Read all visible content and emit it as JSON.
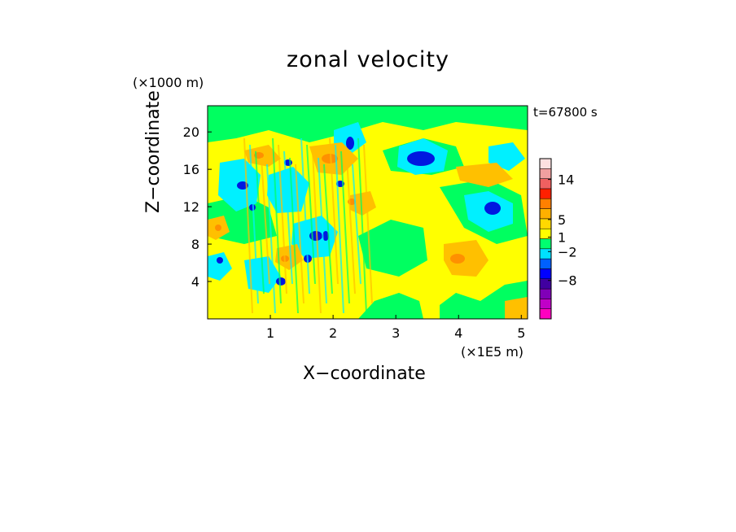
{
  "chart_data": {
    "type": "heatmap",
    "title": "zonal velocity",
    "xlabel": "X−coordinate",
    "ylabel": "Z−coordinate",
    "x_multiplier": "(×1E5 m)",
    "y_multiplier": "(×1000 m)",
    "time_label": "t=67800 s",
    "xlim": [
      0,
      5.1
    ],
    "ylim": [
      0,
      22.8
    ],
    "x_ticks": [
      1,
      2,
      3,
      4,
      5
    ],
    "y_ticks": [
      4,
      8,
      12,
      16,
      20
    ],
    "colorbar": {
      "tick_labels": [
        {
          "label": "14",
          "value": 14
        },
        {
          "label": "5",
          "value": 5
        },
        {
          "label": "1",
          "value": 1
        },
        {
          "label": "−2",
          "value": -2
        },
        {
          "label": "−8",
          "value": -8
        }
      ],
      "bands": [
        {
          "color": "#ff00c0"
        },
        {
          "color": "#c000c8"
        },
        {
          "color": "#8000b8"
        },
        {
          "color": "#4000a0"
        },
        {
          "color": "#0000ff"
        },
        {
          "color": "#0060ff"
        },
        {
          "color": "#00e0ff"
        },
        {
          "color": "#00ff70"
        },
        {
          "color": "#ffff00"
        },
        {
          "color": "#ffd800"
        },
        {
          "color": "#ffb000"
        },
        {
          "color": "#ff8000"
        },
        {
          "color": "#ff2000"
        },
        {
          "color": "#f06060"
        },
        {
          "color": "#f0a0a0"
        },
        {
          "color": "#fde0e0"
        }
      ]
    },
    "field_levels": [
      {
        "name": "strong-negative",
        "color": "#0018e0"
      },
      {
        "name": "negative",
        "color": "#00f0ff"
      },
      {
        "name": "weak-negative",
        "color": "#00ff60"
      },
      {
        "name": "near-zero",
        "color": "#ffff00"
      },
      {
        "name": "weak-positive",
        "color": "#ffc000"
      },
      {
        "name": "positive",
        "color": "#ff9000"
      }
    ]
  }
}
